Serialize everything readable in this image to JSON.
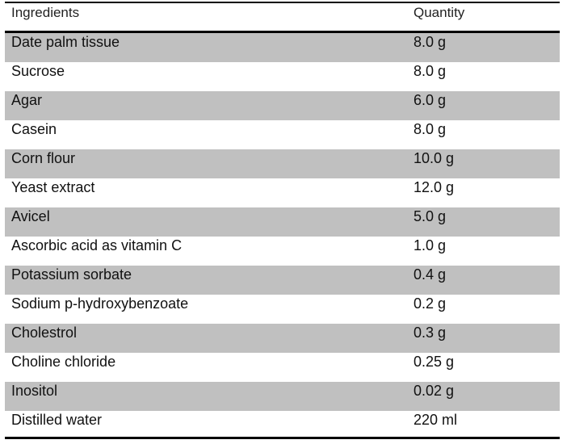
{
  "table": {
    "headers": {
      "ingredient": "Ingredients",
      "quantity": "Quantity"
    },
    "rows": [
      {
        "ingredient": "Date palm tissue",
        "quantity": "8.0 g",
        "shaded": true
      },
      {
        "ingredient": "Sucrose",
        "quantity": "8.0 g",
        "shaded": false
      },
      {
        "ingredient": "Agar",
        "quantity": "6.0 g",
        "shaded": true
      },
      {
        "ingredient": "Casein",
        "quantity": "8.0 g",
        "shaded": false
      },
      {
        "ingredient": "Corn flour",
        "quantity": "10.0 g",
        "shaded": true
      },
      {
        "ingredient": "Yeast extract",
        "quantity": "12.0 g",
        "shaded": false
      },
      {
        "ingredient": "Avicel",
        "quantity": "5.0 g",
        "shaded": true
      },
      {
        "ingredient": "Ascorbic acid as vitamin C",
        "quantity": "1.0 g",
        "shaded": false
      },
      {
        "ingredient": "Potassium sorbate",
        "quantity": "0.4 g",
        "shaded": true
      },
      {
        "ingredient": "Sodium p-hydroxybenzoate",
        "quantity": "0.2 g",
        "shaded": false
      },
      {
        "ingredient": "Cholestrol",
        "quantity": "0.3 g",
        "shaded": true
      },
      {
        "ingredient": "Choline chloride",
        "quantity": "0.25 g",
        "shaded": false
      },
      {
        "ingredient": "Inositol",
        "quantity": "0.02 g",
        "shaded": true
      },
      {
        "ingredient": "Distilled water",
        "quantity": "220 ml",
        "shaded": false
      }
    ]
  },
  "colors": {
    "shaded_row": "#c0c0c0",
    "rule": "#000000",
    "background": "#ffffff"
  }
}
